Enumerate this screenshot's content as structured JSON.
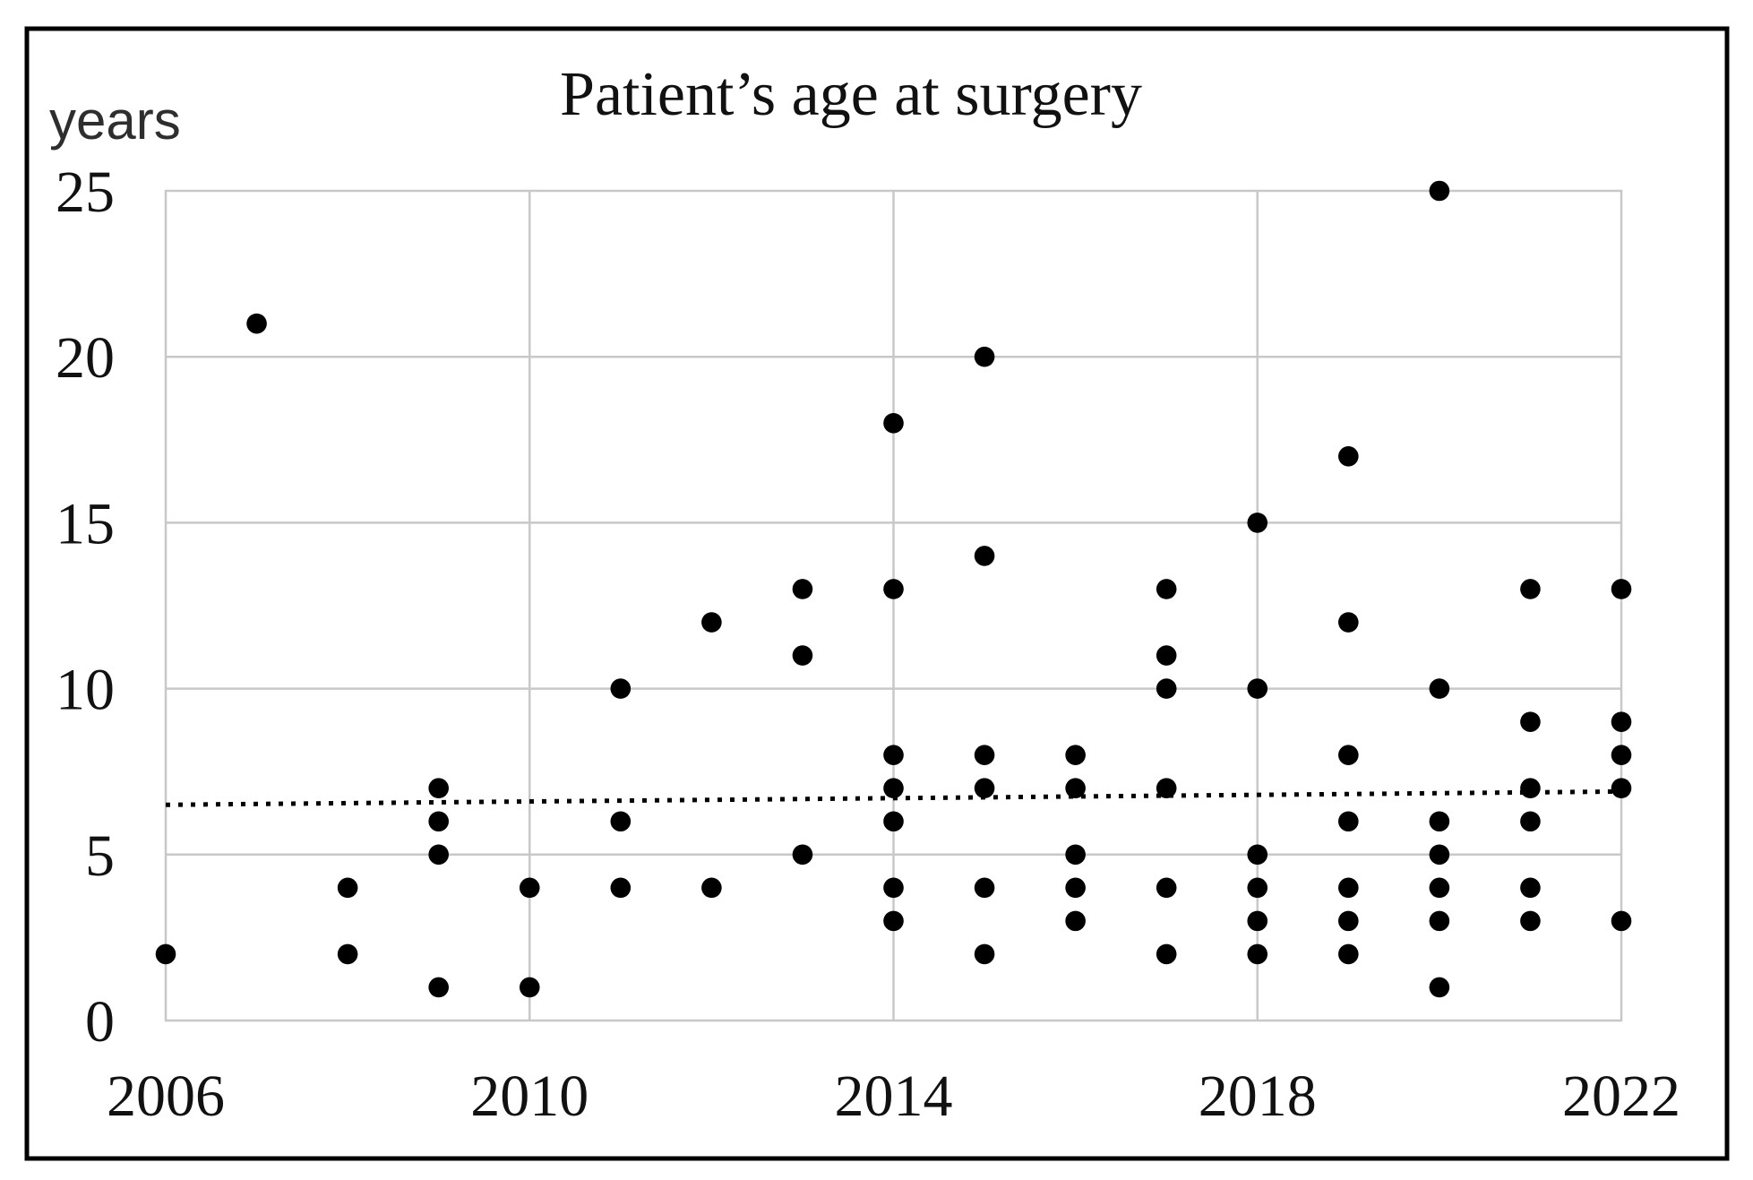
{
  "figure": {
    "title": "Patient’s age at surgery",
    "y_axis_unit": "years"
  },
  "chart_data": {
    "type": "scatter",
    "title": "Patient’s age at surgery",
    "xlabel": "",
    "ylabel": "years",
    "xlim": [
      2006,
      2022
    ],
    "ylim": [
      0,
      25
    ],
    "x_ticks": [
      "2006",
      "2010",
      "2014",
      "2018",
      "2022"
    ],
    "y_ticks": [
      "0",
      "5",
      "10",
      "15",
      "20",
      "25"
    ],
    "grid": true,
    "legend_position": "none",
    "marker_color": "#000000",
    "gridline_color": "#c8c8c8",
    "frame_color": "#000000",
    "series": [
      {
        "year": 2006,
        "ages": [
          2
        ]
      },
      {
        "year": 2007,
        "ages": [
          21
        ]
      },
      {
        "year": 2008,
        "ages": [
          2,
          4
        ]
      },
      {
        "year": 2009,
        "ages": [
          1,
          5,
          6,
          7
        ]
      },
      {
        "year": 2010,
        "ages": [
          1,
          4
        ]
      },
      {
        "year": 2011,
        "ages": [
          4,
          6,
          10
        ]
      },
      {
        "year": 2012,
        "ages": [
          4,
          12
        ]
      },
      {
        "year": 2013,
        "ages": [
          5,
          11,
          13
        ]
      },
      {
        "year": 2014,
        "ages": [
          3,
          4,
          6,
          7,
          8,
          13,
          18
        ]
      },
      {
        "year": 2015,
        "ages": [
          2,
          4,
          7,
          8,
          14,
          20
        ]
      },
      {
        "year": 2016,
        "ages": [
          3,
          4,
          5,
          7,
          8
        ]
      },
      {
        "year": 2017,
        "ages": [
          2,
          4,
          7,
          10,
          11,
          13
        ]
      },
      {
        "year": 2018,
        "ages": [
          2,
          3,
          4,
          5,
          10,
          15
        ]
      },
      {
        "year": 2019,
        "ages": [
          2,
          3,
          4,
          6,
          8,
          12,
          17
        ]
      },
      {
        "year": 2020,
        "ages": [
          1,
          3,
          4,
          5,
          6,
          10,
          25
        ]
      },
      {
        "year": 2021,
        "ages": [
          3,
          4,
          6,
          7,
          9,
          13
        ]
      },
      {
        "year": 2022,
        "ages": [
          3,
          7,
          8,
          9,
          13
        ]
      }
    ],
    "trendline": {
      "style": "dotted",
      "color": "#000000",
      "x1": 2006,
      "y1": 6.5,
      "x2": 2022,
      "y2": 6.9
    }
  }
}
